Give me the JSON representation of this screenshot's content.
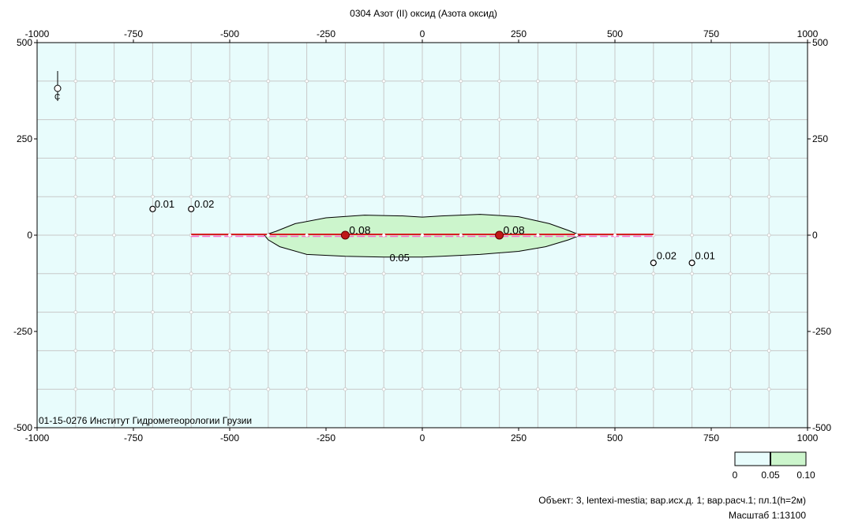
{
  "chart_data": {
    "type": "contour",
    "title": "0304 Азот (II) оксид (Азота оксид)",
    "x_range": [
      -1000,
      1000
    ],
    "y_range": [
      -500,
      500
    ],
    "x_ticks": [
      -1000,
      -750,
      -500,
      -250,
      0,
      250,
      500,
      750,
      1000
    ],
    "y_ticks": [
      500,
      250,
      0,
      -250,
      -500
    ],
    "grid_step": 100,
    "grid": true,
    "background_color": "#e8fcfc",
    "contours": [
      {
        "level": 0.05,
        "label": "0.05",
        "fill": "#ccf5cc",
        "points": [
          [
            -410,
            0
          ],
          [
            -380,
            10
          ],
          [
            -330,
            30
          ],
          [
            -250,
            45
          ],
          [
            -150,
            52
          ],
          [
            -50,
            50
          ],
          [
            0,
            47
          ],
          [
            50,
            50
          ],
          [
            150,
            54
          ],
          [
            250,
            48
          ],
          [
            330,
            30
          ],
          [
            380,
            12
          ],
          [
            410,
            0
          ],
          [
            380,
            -12
          ],
          [
            320,
            -30
          ],
          [
            250,
            -42
          ],
          [
            150,
            -50
          ],
          [
            50,
            -55
          ],
          [
            0,
            -57
          ],
          [
            -100,
            -57
          ],
          [
            -200,
            -55
          ],
          [
            -300,
            -50
          ],
          [
            -370,
            -30
          ],
          [
            -400,
            -12
          ]
        ]
      }
    ],
    "contour_labels": [
      {
        "text": "0.08",
        "x": -190,
        "y": 3
      },
      {
        "text": "0.08",
        "x": 210,
        "y": 3
      },
      {
        "text": "0.05",
        "x": -85,
        "y": -68
      },
      {
        "text": "0.01",
        "x": -695,
        "y": 72
      },
      {
        "text": "0.02",
        "x": -592,
        "y": 72
      },
      {
        "text": "0.02",
        "x": 608,
        "y": -63
      },
      {
        "text": "0.01",
        "x": 708,
        "y": -63
      }
    ],
    "sources": [
      {
        "x": -200,
        "y": 0
      },
      {
        "x": 200,
        "y": 0
      }
    ],
    "small_markers": [
      {
        "x": -700,
        "y": 68,
        "color": "#ffffff"
      },
      {
        "x": -600,
        "y": 68,
        "color": "#ffffff"
      },
      {
        "x": 600,
        "y": -72,
        "color": "#ffffff"
      },
      {
        "x": 700,
        "y": -72,
        "color": "#ffffff"
      }
    ],
    "road": {
      "x1": -600,
      "x2": 600,
      "y": 0,
      "color": "#d42020",
      "dash_color": "#ff66cc"
    },
    "legend": {
      "placement": "bottom-right",
      "ticks": [
        "0",
        "0.05",
        "0.10"
      ],
      "colors": [
        "#e8fcfc",
        "#ccf5cc"
      ]
    },
    "annotation_left_bottom": "01-15-0276 Институт Гидрометеорологии Грузии",
    "footer_line1": "Объект: 3, lentexi-mestia; вар.исх.д. 1; вар.расч.1; пл.1(h=2м)",
    "footer_line2": "Масштаб 1:13100"
  }
}
